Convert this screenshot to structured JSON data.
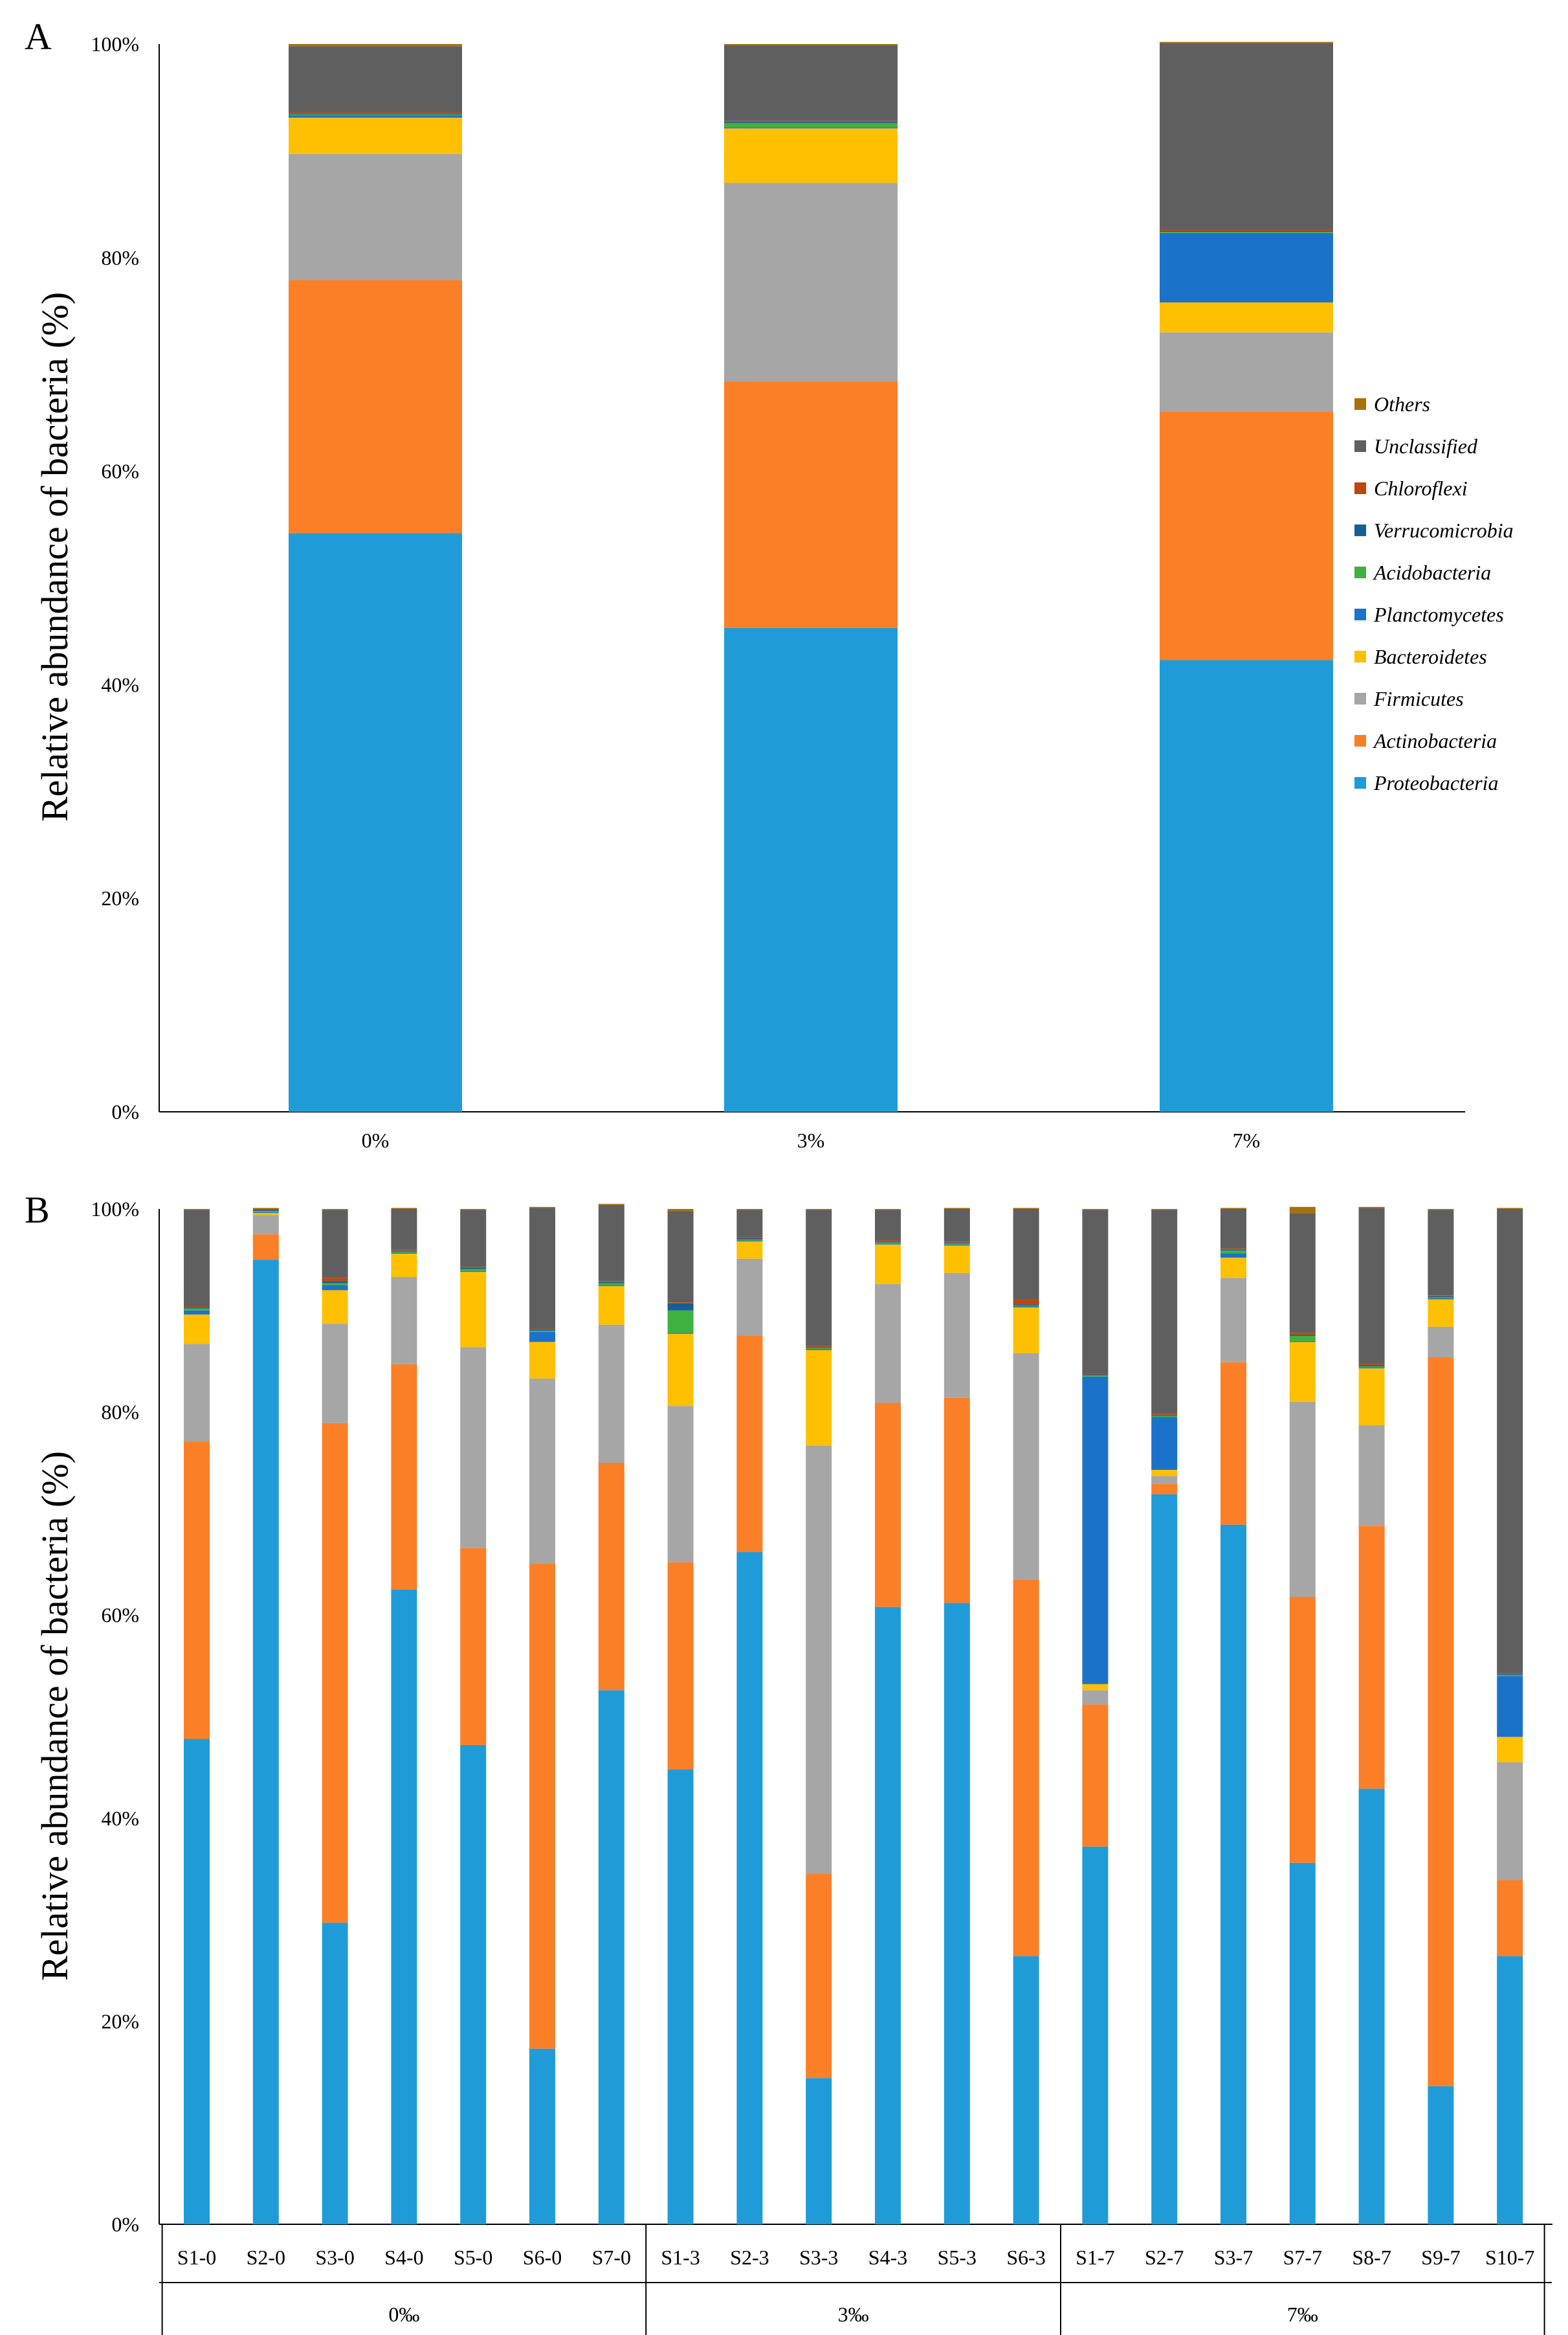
{
  "chart_data": [
    {
      "panel": "A",
      "type": "bar",
      "stacked": true,
      "ylabel": "Relative abundance of bacteria (%)",
      "ylim": [
        0,
        100
      ],
      "yticks": [
        "0%",
        "20%",
        "40%",
        "60%",
        "80%",
        "100%"
      ],
      "categories": [
        "0%",
        "3%",
        "7%"
      ],
      "legend_position": "right",
      "series": [
        {
          "name": "Proteobacteria",
          "color": "#1f9cd8",
          "values": [
            54.2,
            45.3,
            42.3
          ]
        },
        {
          "name": "Actinobacteria",
          "color": "#fb7f27",
          "values": [
            23.7,
            23.1,
            23.3
          ]
        },
        {
          "name": "Firmicutes",
          "color": "#a6a6a6",
          "values": [
            11.8,
            18.6,
            7.4
          ]
        },
        {
          "name": "Bacteroidetes",
          "color": "#fec000",
          "values": [
            3.4,
            5.1,
            2.8
          ]
        },
        {
          "name": "Planctomycetes",
          "color": "#1b73c9",
          "values": [
            0.2,
            0.1,
            6.5
          ]
        },
        {
          "name": "Acidobacteria",
          "color": "#3fb13f",
          "values": [
            0.1,
            0.4,
            0.1
          ]
        },
        {
          "name": "Verrucomicrobia",
          "color": "#175e96",
          "values": [
            0.1,
            0.1,
            0.1
          ]
        },
        {
          "name": "Chloroflexi",
          "color": "#c0450c",
          "values": [
            0.1,
            0.1,
            0.1
          ]
        },
        {
          "name": "Unclassified",
          "color": "#5f5f5f",
          "values": [
            6.2,
            7.1,
            17.5
          ]
        },
        {
          "name": "Others",
          "color": "#a87108",
          "values": [
            0.2,
            0.1,
            0.1
          ]
        }
      ]
    },
    {
      "panel": "B",
      "type": "bar",
      "stacked": true,
      "ylabel": "Relative abundance of bacteria (%)",
      "ylim": [
        0,
        100
      ],
      "yticks": [
        "0%",
        "20%",
        "40%",
        "60%",
        "80%",
        "100%"
      ],
      "categories": [
        "S1-0",
        "S2-0",
        "S3-0",
        "S4-0",
        "S5-0",
        "S6-0",
        "S7-0",
        "S1-3",
        "S2-3",
        "S3-3",
        "S4-3",
        "S5-3",
        "S6-3",
        "S1-7",
        "S2-7",
        "S3-7",
        "S7-7",
        "S8-7",
        "S9-7",
        "S10-7"
      ],
      "groups": [
        {
          "label": "0‰",
          "count": 7
        },
        {
          "label": "3‰",
          "count": 6
        },
        {
          "label": "7‰",
          "count": 7
        }
      ],
      "series": [
        {
          "name": "Proteobacteria",
          "color": "#1f9cd8",
          "values": [
            47.8,
            95,
            29.7,
            62.5,
            47.2,
            17.3,
            52.6,
            44.8,
            66.2,
            14.4,
            60.8,
            61.2,
            26.4,
            37.2,
            71.9,
            68.9,
            35.6,
            42.9,
            13.6,
            26.4
          ]
        },
        {
          "name": "Actinobacteria",
          "color": "#fb7f27",
          "values": [
            29.3,
            2.5,
            49.2,
            22.2,
            19.4,
            47.8,
            22.4,
            20.4,
            21.3,
            20.1,
            20.1,
            20.2,
            37.1,
            14,
            1,
            16,
            26.2,
            25.9,
            71.8,
            7.5
          ]
        },
        {
          "name": "Firmicutes",
          "color": "#a6a6a6",
          "values": [
            9.6,
            1.9,
            9.8,
            8.6,
            19.8,
            18.2,
            13.6,
            15.4,
            7.6,
            42.2,
            11.7,
            12.3,
            22.3,
            1.4,
            0.8,
            8.3,
            19.2,
            9.9,
            3,
            11.6
          ]
        },
        {
          "name": "Bacteroidetes",
          "color": "#fec000",
          "values": [
            2.9,
            0.2,
            3.3,
            2.3,
            7.4,
            3.6,
            3.8,
            7.1,
            1.7,
            9.4,
            3.9,
            2.7,
            4.5,
            0.6,
            0.6,
            2,
            5.9,
            5.6,
            2.7,
            2.5
          ]
        },
        {
          "name": "Planctomycetes",
          "color": "#1b73c9",
          "values": [
            0.4,
            0.1,
            0.5,
            0.1,
            0.1,
            1,
            0.1,
            0.1,
            0.1,
            0.1,
            0.1,
            0.1,
            0.1,
            30.3,
            5.2,
            0.4,
            0.1,
            0.1,
            0.1,
            6
          ]
        },
        {
          "name": "Acidobacteria",
          "color": "#3fb13f",
          "values": [
            0.2,
            0.1,
            0.2,
            0.1,
            0.2,
            0.1,
            0.2,
            2.2,
            0.1,
            0.1,
            0.1,
            0.1,
            0.1,
            0.1,
            0.1,
            0.3,
            0.5,
            0.1,
            0.1,
            0.1
          ]
        },
        {
          "name": "Verrucomicrobia",
          "color": "#175e96",
          "values": [
            0.1,
            0.1,
            0.2,
            0.1,
            0.1,
            0.1,
            0.1,
            0.7,
            0.1,
            0.1,
            0.1,
            0.1,
            0.1,
            0.1,
            0.1,
            0.1,
            0.1,
            0.1,
            0.1,
            0.1
          ]
        },
        {
          "name": "Chloroflexi",
          "color": "#c0450c",
          "values": [
            0.1,
            0.1,
            0.3,
            0.1,
            0.1,
            0.1,
            0.1,
            0.1,
            0.1,
            0.1,
            0.1,
            0.1,
            0.5,
            0.1,
            0.1,
            0.1,
            0.2,
            0.1,
            0.1,
            0.1
          ]
        },
        {
          "name": "Unclassified",
          "color": "#5f5f5f",
          "values": [
            9.5,
            0,
            6.7,
            4.0,
            5.6,
            11.9,
            7.5,
            9,
            2.7,
            13.4,
            3,
            3.2,
            8.9,
            16.1,
            20.1,
            3.9,
            11.8,
            15.4,
            8.4,
            45.7
          ]
        },
        {
          "name": "Others",
          "color": "#a87108",
          "values": [
            0.1,
            0.1,
            0.1,
            0.1,
            0.1,
            0.1,
            0.1,
            0.2,
            0.1,
            0.1,
            0.1,
            0.1,
            0.1,
            0.1,
            0.1,
            0.1,
            0.6,
            0.1,
            0.1,
            0.1
          ]
        }
      ]
    }
  ]
}
